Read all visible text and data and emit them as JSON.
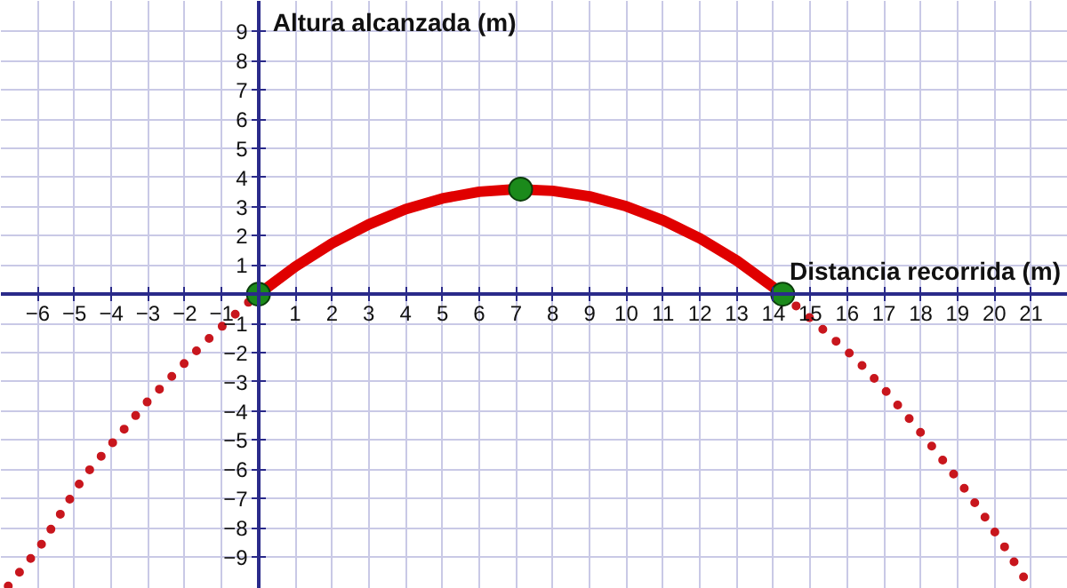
{
  "chart_data": {
    "type": "line",
    "xlabel": "Distancia recorrida (m)",
    "ylabel": "Altura alcanzada (m)",
    "xlim": [
      -7,
      22
    ],
    "ylim": [
      -10.1,
      10.05
    ],
    "xticks": [
      -6,
      -5,
      -4,
      -3,
      -2,
      -1,
      1,
      2,
      3,
      4,
      5,
      6,
      7,
      8,
      9,
      10,
      11,
      12,
      13,
      14,
      15,
      16,
      17,
      18,
      19,
      20,
      21
    ],
    "yticks": [
      -9,
      -8,
      -7,
      -6,
      -5,
      -4,
      -3,
      -2,
      -1,
      1,
      2,
      3,
      4,
      5,
      6,
      7,
      8,
      9
    ],
    "grid": true,
    "series": [
      {
        "line_style": "dotted",
        "color": "#c8161d",
        "x": [
          -6.8,
          -5.96,
          -4.75,
          -3.0,
          -1.5,
          -0.34,
          0
        ],
        "values": [
          -10.0,
          -8.7,
          -6.26,
          -3.66,
          -1.7,
          -0.35,
          0
        ]
      },
      {
        "line_style": "solid",
        "color": "#e00000",
        "x": [
          0,
          1,
          2,
          3,
          4,
          5,
          6,
          7,
          8,
          9,
          10,
          11,
          12,
          13,
          14.25
        ],
        "values": [
          0,
          0.94,
          1.74,
          2.39,
          2.91,
          3.28,
          3.51,
          3.6,
          3.54,
          3.35,
          3.01,
          2.53,
          1.91,
          1.15,
          0
        ]
      },
      {
        "line_style": "dotted",
        "color": "#c8161d",
        "x": [
          14.25,
          15.46,
          16.27,
          16.99,
          17.69,
          18.36,
          19.0,
          19.64,
          20.2,
          20.8
        ],
        "values": [
          0,
          -1.34,
          -2.26,
          -3.23,
          -4.27,
          -5.3,
          -6.34,
          -7.44,
          -8.5,
          -9.7
        ]
      },
      {
        "type": "scatter",
        "marker": "circle",
        "color": "#1b8a1b",
        "x": [
          0,
          7.125,
          14.25
        ],
        "values": [
          0,
          3.6,
          0
        ]
      }
    ]
  }
}
